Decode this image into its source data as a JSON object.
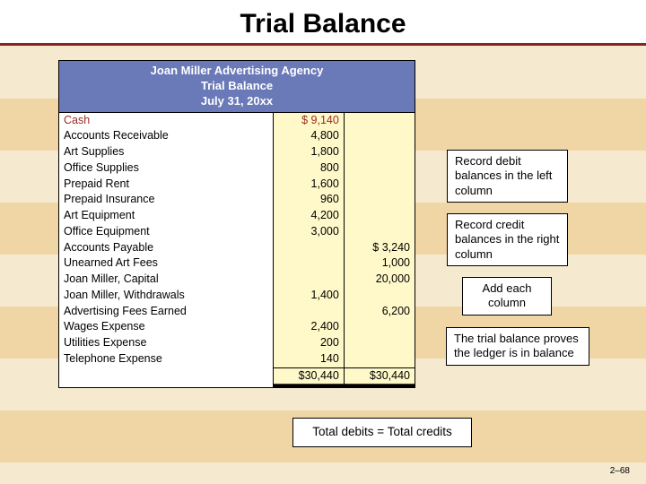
{
  "slide": {
    "title": "Trial Balance",
    "pagenum": "2–68"
  },
  "header": {
    "company": "Joan Miller Advertising Agency",
    "report": "Trial Balance",
    "date": "July 31, 20xx"
  },
  "rows": [
    {
      "acct": "Cash",
      "debit": "$ 9,140",
      "credit": "",
      "highlight": true
    },
    {
      "acct": "Accounts Receivable",
      "debit": "4,800",
      "credit": ""
    },
    {
      "acct": "Art Supplies",
      "debit": "1,800",
      "credit": ""
    },
    {
      "acct": "Office Supplies",
      "debit": "800",
      "credit": ""
    },
    {
      "acct": "Prepaid Rent",
      "debit": "1,600",
      "credit": ""
    },
    {
      "acct": "Prepaid Insurance",
      "debit": "960",
      "credit": ""
    },
    {
      "acct": "Art Equipment",
      "debit": "4,200",
      "credit": ""
    },
    {
      "acct": "Office Equipment",
      "debit": "3,000",
      "credit": ""
    },
    {
      "acct": "Accounts Payable",
      "debit": "",
      "credit": "$  3,240"
    },
    {
      "acct": "Unearned Art Fees",
      "debit": "",
      "credit": "1,000"
    },
    {
      "acct": "Joan Miller, Capital",
      "debit": "",
      "credit": "20,000"
    },
    {
      "acct": "Joan Miller, Withdrawals",
      "debit": "1,400",
      "credit": ""
    },
    {
      "acct": "Advertising Fees Earned",
      "debit": "",
      "credit": "6,200"
    },
    {
      "acct": "Wages Expense",
      "debit": "2,400",
      "credit": ""
    },
    {
      "acct": "Utilities Expense",
      "debit": "200",
      "credit": ""
    },
    {
      "acct": "Telephone Expense",
      "debit": "140",
      "credit": ""
    }
  ],
  "totals": {
    "debit": "$30,440",
    "credit": "$30,440"
  },
  "callouts": {
    "c1": "Record debit balances in the left column",
    "c2": "Record credit balances in the right column",
    "c3": "Add each column",
    "c4": "The trial balance proves the ledger is in balance",
    "eq": "Total debits  =  Total credits"
  }
}
